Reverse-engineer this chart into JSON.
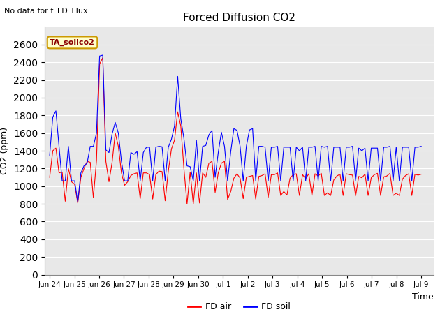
{
  "title": "Forced Diffusion CO2",
  "top_left_text": "No data for f_FD_Flux",
  "annotation_text": "TA_soilco2",
  "xlabel": "Time",
  "ylabel": "CO2 (ppm)",
  "ylim": [
    0,
    2800
  ],
  "yticks": [
    0,
    200,
    400,
    600,
    800,
    1000,
    1200,
    1400,
    1600,
    1800,
    2000,
    2200,
    2400,
    2600
  ],
  "plot_bg": "#e8e8e8",
  "fig_bg": "#ffffff",
  "legend_entries": [
    "FD air",
    "FD soil"
  ],
  "line_colors": [
    "red",
    "blue"
  ],
  "fd_air": [
    1100,
    1400,
    1430,
    1150,
    1160,
    830,
    1200,
    1050,
    1020,
    810,
    1100,
    1200,
    1280,
    1270,
    870,
    1290,
    2380,
    2450,
    1280,
    1050,
    1270,
    1600,
    1450,
    1150,
    1010,
    1050,
    1120,
    1140,
    1150,
    860,
    1150,
    1150,
    1130,
    855,
    1130,
    1170,
    1165,
    835,
    1170,
    1420,
    1520,
    1840,
    1680,
    1200,
    800,
    1160,
    800,
    1150,
    810,
    1150,
    1100,
    1260,
    1280,
    930,
    1150,
    1260,
    1280,
    850,
    940,
    1090,
    1140,
    1090,
    860,
    1100,
    1110,
    1120,
    855,
    1110,
    1120,
    1140,
    875,
    1130,
    1130,
    1150,
    895,
    940,
    900,
    1090,
    1130,
    1140,
    895,
    1130,
    1085,
    1140,
    895,
    1140,
    1115,
    1145,
    895,
    925,
    895,
    1070,
    1115,
    1135,
    895,
    1140,
    1130,
    1125,
    890,
    1110,
    1095,
    1135,
    895,
    1095,
    1130,
    1145,
    895,
    1105,
    1115,
    1145,
    895,
    920,
    895,
    1080,
    1120,
    1140,
    895,
    1135,
    1125,
    1135
  ],
  "fd_soil": [
    1350,
    1780,
    1850,
    1450,
    1060,
    1060,
    1450,
    1060,
    1060,
    820,
    1150,
    1230,
    1260,
    1450,
    1450,
    1600,
    2470,
    2480,
    1410,
    1380,
    1590,
    1720,
    1600,
    1280,
    1060,
    1060,
    1380,
    1360,
    1390,
    1060,
    1380,
    1440,
    1440,
    1060,
    1440,
    1450,
    1445,
    1060,
    1440,
    1530,
    1680,
    2240,
    1760,
    1540,
    1230,
    1220,
    1060,
    1520,
    1060,
    1450,
    1460,
    1580,
    1630,
    1100,
    1380,
    1610,
    1450,
    1060,
    1390,
    1650,
    1630,
    1450,
    1060,
    1450,
    1635,
    1650,
    1060,
    1450,
    1450,
    1440,
    1060,
    1440,
    1440,
    1450,
    1060,
    1440,
    1440,
    1440,
    1060,
    1440,
    1400,
    1440,
    1060,
    1440,
    1440,
    1450,
    1060,
    1450,
    1440,
    1450,
    1060,
    1440,
    1440,
    1440,
    1060,
    1440,
    1440,
    1450,
    1060,
    1430,
    1400,
    1430,
    1060,
    1430,
    1430,
    1430,
    1060,
    1440,
    1440,
    1450,
    1060,
    1440,
    1060,
    1440,
    1440,
    1440,
    1060,
    1440,
    1440,
    1450
  ],
  "num_points": 120,
  "x_tick_labels": [
    "Jun 24",
    "Jun 25",
    "Jun 26",
    "Jun 27",
    "Jun 28",
    "Jun 29",
    "Jun 30",
    "Jul 1",
    "Jul 2",
    "Jul 3",
    "Jul 4",
    "Jul 5",
    "Jul 6",
    "Jul 7",
    "Jul 8",
    "Jul 9"
  ]
}
